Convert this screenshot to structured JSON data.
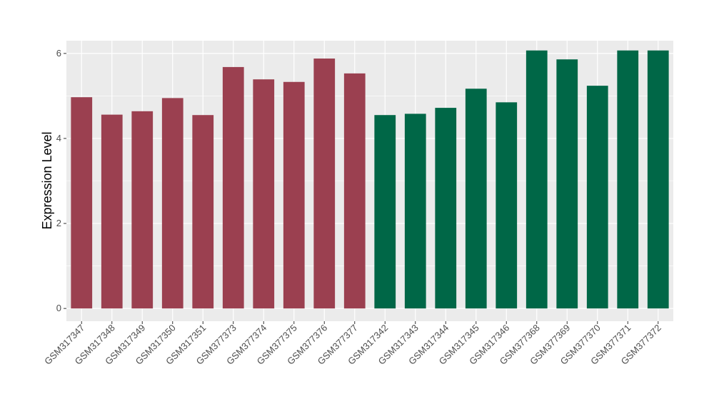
{
  "chart_data": {
    "type": "bar",
    "ylabel": "Expression Level",
    "xlabel": "",
    "ylim": [
      -0.3,
      6.3
    ],
    "yticks": [
      0,
      2,
      4,
      6
    ],
    "grid": true,
    "colors": {
      "group_a": "#9b4050",
      "group_b": "#006747",
      "panel": "#ebebeb",
      "gridline": "#ffffff"
    },
    "categories": [
      "GSM317347",
      "GSM317348",
      "GSM317349",
      "GSM317350",
      "GSM317351",
      "GSM377373",
      "GSM377374",
      "GSM377375",
      "GSM377376",
      "GSM377377",
      "GSM317342",
      "GSM317343",
      "GSM317344",
      "GSM317345",
      "GSM317346",
      "GSM377368",
      "GSM377369",
      "GSM377370",
      "GSM377371",
      "GSM377372"
    ],
    "values": [
      4.97,
      4.56,
      4.64,
      4.95,
      4.55,
      5.68,
      5.39,
      5.33,
      5.88,
      5.53,
      4.55,
      4.58,
      4.72,
      5.17,
      4.85,
      6.07,
      5.86,
      5.24,
      6.07,
      6.07
    ],
    "bar_groups": [
      "group_a",
      "group_a",
      "group_a",
      "group_a",
      "group_a",
      "group_a",
      "group_a",
      "group_a",
      "group_a",
      "group_a",
      "group_b",
      "group_b",
      "group_b",
      "group_b",
      "group_b",
      "group_b",
      "group_b",
      "group_b",
      "group_b",
      "group_b"
    ]
  }
}
